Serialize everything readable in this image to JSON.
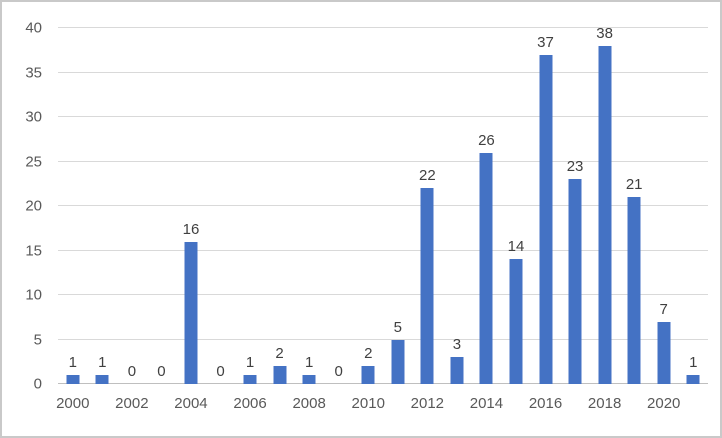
{
  "chart_data": {
    "type": "bar",
    "categories": [
      "2000",
      "2001",
      "2002",
      "2003",
      "2004",
      "2005",
      "2006",
      "2007",
      "2008",
      "2009",
      "2010",
      "2011",
      "2012",
      "2013",
      "2014",
      "2015",
      "2016",
      "2017",
      "2018",
      "2019",
      "2020",
      "2021"
    ],
    "values": [
      1,
      1,
      0,
      0,
      16,
      0,
      1,
      2,
      1,
      0,
      2,
      5,
      22,
      3,
      26,
      14,
      37,
      23,
      38,
      21,
      7,
      1
    ],
    "data_labels": [
      "1",
      "1",
      "0",
      "0",
      "16",
      "0",
      "1",
      "2",
      "1",
      "0",
      "2",
      "5",
      "22",
      "3",
      "26",
      "14",
      "37",
      "23",
      "38",
      "21",
      "7",
      "1"
    ],
    "title": "",
    "xlabel": "",
    "ylabel": "",
    "ylim": [
      0,
      40
    ],
    "ytick_step": 5,
    "ytick_labels": [
      "0",
      "5",
      "10",
      "15",
      "20",
      "25",
      "30",
      "35",
      "40"
    ],
    "xtick_shown_every": 2,
    "xtick_labels_shown": [
      "2000",
      "2002",
      "2004",
      "2006",
      "2008",
      "2010",
      "2012",
      "2014",
      "2016",
      "2018",
      "2020"
    ],
    "legend": "none",
    "grid": "horizontal",
    "colors": {
      "bar": "#4472c4",
      "gridline": "#d9d9d9",
      "baseline": "#bfbfbf",
      "data_label": "#404040",
      "axis_label": "#595959",
      "background": "#ffffff",
      "frame_border": "#c9c9c9"
    }
  }
}
